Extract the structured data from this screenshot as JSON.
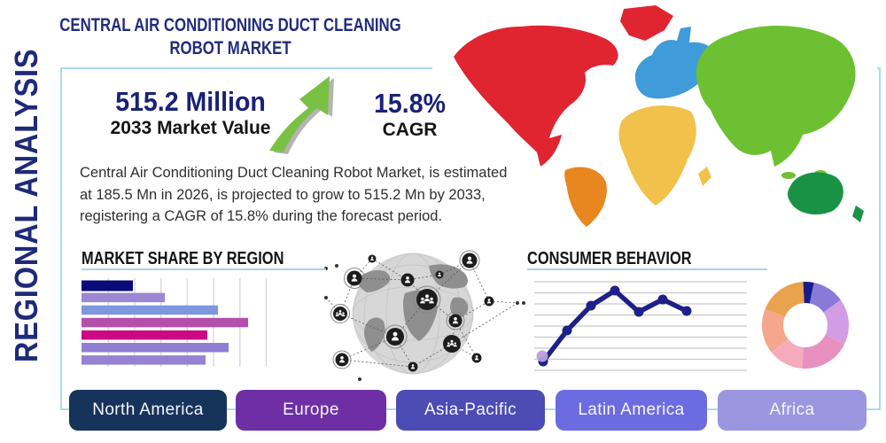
{
  "header": {
    "title_line1": "CENTRAL AIR CONDITIONING DUCT CLEANING",
    "title_line2": "ROBOT MARKET",
    "side_label": "REGIONAL ANALYSIS"
  },
  "stats": {
    "market_value": "515.2 Million",
    "market_value_caption": "2033 Market Value",
    "cagr_value": "15.8%",
    "cagr_caption": "CAGR",
    "growth_arrow_color": "#7ac143"
  },
  "description": "Central Air Conditioning Duct Cleaning Robot Market, is estimated at 185.5 Mn in 2026, is projected to grow to 515.2 Mn by 2033, registering a CAGR of 15.8% during the forecast period.",
  "sections": {
    "market_share_heading": "MARKET SHARE BY REGION",
    "consumer_behavior_heading": "CONSUMER BEHAVIOR"
  },
  "region_buttons": [
    {
      "label": "North America",
      "color": "#16345b"
    },
    {
      "label": "Europe",
      "color": "#6e2fa5"
    },
    {
      "label": "Asia-Pacific",
      "color": "#4c4cb4"
    },
    {
      "label": "Latin America",
      "color": "#6c6ce0"
    },
    {
      "label": "Africa",
      "color": "#9a96e0"
    }
  ],
  "map": {
    "continents": [
      {
        "name": "North America",
        "color": "#e02531"
      },
      {
        "name": "South America",
        "color": "#e8861f"
      },
      {
        "name": "Europe",
        "color": "#3f9bd9"
      },
      {
        "name": "Africa",
        "color": "#f2c14b"
      },
      {
        "name": "Asia",
        "color": "#6cc032"
      },
      {
        "name": "Australia",
        "color": "#1a9246"
      }
    ]
  },
  "theme": {
    "frame_border_color": "#abdbec",
    "title_color": "#222c7c",
    "heading_underline_color": "#a9d4e8"
  },
  "chart_data": [
    {
      "name": "market_share_by_region",
      "type": "bar",
      "orientation": "horizontal",
      "title": "MARKET SHARE BY REGION",
      "values": [
        29,
        47,
        77,
        94,
        71,
        83,
        70
      ],
      "xlim": [
        0,
        100
      ],
      "grid": true,
      "bar_colors": [
        "#0a0a78",
        "#9b87d2",
        "#7f97de",
        "#b44fab",
        "#cc0983",
        "#8f7fd2",
        "#9583d2"
      ]
    },
    {
      "name": "consumer_behavior",
      "type": "line",
      "title": "CONSUMER BEHAVIOR",
      "x": [
        1,
        2,
        3,
        4,
        5,
        6,
        7
      ],
      "values": [
        10,
        45,
        73,
        90,
        66,
        80,
        67
      ],
      "ylim": [
        0,
        100
      ],
      "grid": true,
      "line_color": "#1d2088",
      "marker_color": "#1d2088",
      "first_marker_halo_color": "#b79fdd"
    },
    {
      "name": "regional_share_donut",
      "type": "pie",
      "donut": true,
      "values": [
        4,
        12,
        17,
        19,
        13,
        17,
        18
      ],
      "colors": [
        "#1a1a8f",
        "#8a7ad8",
        "#d29de4",
        "#e890bf",
        "#f5abbc",
        "#f5a68c",
        "#eaa24f"
      ]
    }
  ]
}
